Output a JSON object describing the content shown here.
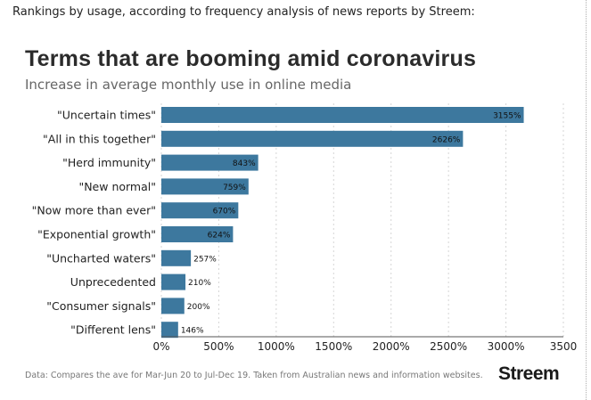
{
  "caption": "Rankings by usage, according to frequency analysis of news reports by Streem:",
  "footnote": "Data: Compares the ave for Mar-Jun 20 to Jul-Dec 19. Taken from Australian news and information websites.",
  "brand": "Streem",
  "colors": {
    "bar": "#3d789e",
    "grid": "#d6d6d6",
    "axis": "#555555",
    "text": "#222222"
  },
  "chart_data": {
    "type": "bar",
    "orientation": "horizontal",
    "title": "Terms that are booming amid coronavirus",
    "subtitle": "Increase in average monthly use in online media",
    "categories": [
      "\"Uncertain times\"",
      "\"All in this together\"",
      "\"Herd immunity\"",
      "\"New normal\"",
      "\"Now more than ever\"",
      "\"Exponential growth\"",
      "\"Uncharted waters\"",
      "Unprecedented",
      "\"Consumer signals\"",
      "\"Different lens\""
    ],
    "values": [
      3155,
      2626,
      843,
      759,
      670,
      624,
      257,
      210,
      200,
      146
    ],
    "value_labels": [
      "3155%",
      "2626%",
      "843%",
      "759%",
      "670%",
      "624%",
      "257%",
      "210%",
      "200%",
      "146%"
    ],
    "xlim": [
      0,
      3500
    ],
    "xticks": [
      0,
      500,
      1000,
      1500,
      2000,
      2500,
      3000,
      3500
    ],
    "xtick_labels": [
      "0%",
      "500%",
      "1000%",
      "1500%",
      "2000%",
      "2500%",
      "3000%",
      "3500"
    ],
    "grid": "vertical dashed"
  }
}
